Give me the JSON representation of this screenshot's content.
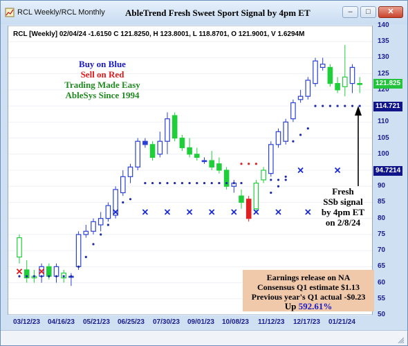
{
  "window": {
    "title": "RCL Weekly/RCL Monthly",
    "buttons": {
      "minimize": "–",
      "maximize": "□",
      "close": "✕"
    }
  },
  "chart_data": {
    "type": "candlestick",
    "title": "AbleTrend Fresh Sweet Sport Signal by 4pm ET",
    "header": "RCL [Weekly] 02/04/24  -1.6150 C 121.8250, H 123.8001, L 118.8701, O 121.9001, V 1.6294M",
    "ylim": [
      50,
      140
    ],
    "y_ticks": [
      50,
      55,
      60,
      65,
      70,
      75,
      80,
      85,
      90,
      95,
      100,
      105,
      110,
      115,
      120,
      125,
      130,
      135,
      140
    ],
    "x_ticks": [
      "03/12/23",
      "04/16/23",
      "05/21/23",
      "06/25/23",
      "07/30/23",
      "09/01/23",
      "10/08/23",
      "11/12/23",
      "12/17/23",
      "01/21/24"
    ],
    "bars": [
      {
        "o": 68,
        "h": 75,
        "l": 66,
        "c": 74,
        "color": "green"
      },
      {
        "o": 64,
        "h": 67,
        "l": 60,
        "c": 61.5,
        "color": "green"
      },
      {
        "o": 61.5,
        "h": 64,
        "l": 60,
        "c": 62,
        "color": "green"
      },
      {
        "o": 62,
        "h": 66,
        "l": 60,
        "c": 65,
        "color": "blue"
      },
      {
        "o": 65,
        "h": 66,
        "l": 61,
        "c": 62,
        "color": "green"
      },
      {
        "o": 62,
        "h": 66,
        "l": 60,
        "c": 65,
        "color": "blue"
      },
      {
        "o": 61.5,
        "h": 64,
        "l": 60,
        "c": 63,
        "color": "green"
      },
      {
        "o": 62,
        "h": 63,
        "l": 59,
        "c": 62,
        "color": "blue"
      },
      {
        "o": 65,
        "h": 76,
        "l": 64,
        "c": 75,
        "color": "blue"
      },
      {
        "o": 75,
        "h": 78,
        "l": 74,
        "c": 76,
        "color": "blue"
      },
      {
        "o": 76,
        "h": 80,
        "l": 75,
        "c": 79,
        "color": "blue"
      },
      {
        "o": 78,
        "h": 82,
        "l": 76,
        "c": 80,
        "color": "blue"
      },
      {
        "o": 80,
        "h": 85,
        "l": 79,
        "c": 84,
        "color": "blue"
      },
      {
        "o": 81,
        "h": 90,
        "l": 80,
        "c": 89,
        "color": "blue"
      },
      {
        "o": 88,
        "h": 95,
        "l": 87,
        "c": 93,
        "color": "blue"
      },
      {
        "o": 93,
        "h": 97,
        "l": 91,
        "c": 96,
        "color": "blue"
      },
      {
        "o": 96,
        "h": 105,
        "l": 95,
        "c": 104,
        "color": "blue"
      },
      {
        "o": 104,
        "h": 105,
        "l": 102,
        "c": 103,
        "color": "blue"
      },
      {
        "o": 103,
        "h": 104,
        "l": 98,
        "c": 99,
        "color": "green"
      },
      {
        "o": 100,
        "h": 107,
        "l": 99,
        "c": 104,
        "color": "blue"
      },
      {
        "o": 104,
        "h": 113,
        "l": 100,
        "c": 111,
        "color": "blue"
      },
      {
        "o": 112,
        "h": 113,
        "l": 104,
        "c": 105,
        "color": "green"
      },
      {
        "o": 105,
        "h": 106,
        "l": 101,
        "c": 102,
        "color": "green"
      },
      {
        "o": 102,
        "h": 105,
        "l": 99,
        "c": 100,
        "color": "green"
      },
      {
        "o": 100,
        "h": 102,
        "l": 98,
        "c": 99,
        "color": "green"
      },
      {
        "o": 98,
        "h": 99,
        "l": 97,
        "c": 98,
        "color": "blue"
      },
      {
        "o": 98,
        "h": 101,
        "l": 95,
        "c": 96,
        "color": "green"
      },
      {
        "o": 97,
        "h": 99,
        "l": 94,
        "c": 95,
        "color": "green"
      },
      {
        "o": 95,
        "h": 96,
        "l": 89,
        "c": 90,
        "color": "green"
      },
      {
        "o": 90,
        "h": 92,
        "l": 88,
        "c": 91,
        "color": "blue"
      },
      {
        "o": 87,
        "h": 89,
        "l": 83,
        "c": 85,
        "color": "green"
      },
      {
        "o": 86,
        "h": 87,
        "l": 79,
        "c": 80,
        "color": "red"
      },
      {
        "o": 83,
        "h": 92,
        "l": 82,
        "c": 91,
        "color": "green"
      },
      {
        "o": 92,
        "h": 96,
        "l": 91,
        "c": 95,
        "color": "green"
      },
      {
        "o": 94,
        "h": 104,
        "l": 93,
        "c": 103,
        "color": "blue"
      },
      {
        "o": 103,
        "h": 108,
        "l": 102,
        "c": 107,
        "color": "blue"
      },
      {
        "o": 104,
        "h": 111,
        "l": 103,
        "c": 110,
        "color": "blue"
      },
      {
        "o": 111,
        "h": 117,
        "l": 110,
        "c": 116,
        "color": "blue"
      },
      {
        "o": 117,
        "h": 120,
        "l": 116,
        "c": 118,
        "color": "blue"
      },
      {
        "o": 118,
        "h": 124,
        "l": 117,
        "c": 123,
        "color": "blue"
      },
      {
        "o": 122,
        "h": 130,
        "l": 121,
        "c": 129,
        "color": "blue"
      },
      {
        "o": 127,
        "h": 130,
        "l": 126,
        "c": 128,
        "color": "blue"
      },
      {
        "o": 127,
        "h": 128,
        "l": 121,
        "c": 122,
        "color": "green"
      },
      {
        "o": 122,
        "h": 124,
        "l": 119,
        "c": 120,
        "color": "green"
      },
      {
        "o": 121,
        "h": 134,
        "l": 118,
        "c": 124,
        "color": "green"
      },
      {
        "o": 122,
        "h": 128,
        "l": 119,
        "c": 127,
        "color": "blue"
      },
      {
        "o": 122,
        "h": 124,
        "l": 119,
        "c": 121.8,
        "color": "green"
      }
    ],
    "stop_dots": [
      {
        "from": 0,
        "to": 7,
        "value": 62
      },
      {
        "from": 8,
        "to": 14,
        "value": null
      },
      {
        "from": 17,
        "to": 30,
        "value": 91
      },
      {
        "from": 34,
        "to": 36,
        "value": 92
      },
      {
        "from": 40,
        "to": 46,
        "value": 115
      }
    ],
    "rising_dots": [
      [
        8,
        65
      ],
      [
        9,
        68
      ],
      [
        10,
        72
      ],
      [
        11,
        75
      ],
      [
        12,
        78
      ],
      [
        13,
        82
      ],
      [
        14,
        85
      ],
      [
        15,
        86
      ],
      [
        34,
        88
      ],
      [
        35,
        90
      ],
      [
        36,
        93
      ],
      [
        37,
        104
      ],
      [
        38,
        106
      ],
      [
        39,
        108
      ]
    ],
    "red_dots": [
      [
        30,
        97
      ],
      [
        31,
        97
      ],
      [
        32,
        97
      ]
    ],
    "x_marks": [
      [
        13,
        82
      ],
      [
        17,
        82
      ],
      [
        20,
        82
      ],
      [
        23,
        82
      ],
      [
        26,
        82
      ],
      [
        29,
        82
      ],
      [
        32,
        82
      ],
      [
        35,
        82
      ],
      [
        39,
        82
      ],
      [
        38,
        95
      ],
      [
        43,
        95
      ]
    ],
    "red_x_marks": [
      [
        0,
        63.5
      ],
      [
        3,
        63.5
      ]
    ],
    "annotations": {
      "legend": [
        "Buy on Blue",
        "Sell on Red",
        "Trading Made Easy",
        "AbleSys Since 1994"
      ],
      "signal_note": [
        "Fresh",
        "SSb signal",
        "by 4pm ET",
        "on 2/8/24"
      ],
      "earnings": [
        "Earnings release on NA",
        "Consensus Q1 estimate $1.13",
        "Previous year's Q1 actual -$0.23",
        "Up 592.61%"
      ]
    },
    "price_tags": [
      {
        "label": "121.825",
        "value": 121.825,
        "color": "green"
      },
      {
        "label": "114.721",
        "value": 114.721,
        "color": "navy"
      },
      {
        "label": "94.7214",
        "value": 94.7214,
        "color": "navy"
      }
    ]
  },
  "colors": {
    "blue_bar": "#2a3fd4",
    "green_bar": "#1fcf3a",
    "red_bar": "#e02020",
    "dot": "#1e2aa8",
    "axis_text": "#1b1b8e",
    "legend_buy": "#1a1ac9",
    "legend_sell": "#e01a1a",
    "legend_green": "#208a20",
    "up_pct": "#1a1ac9"
  }
}
